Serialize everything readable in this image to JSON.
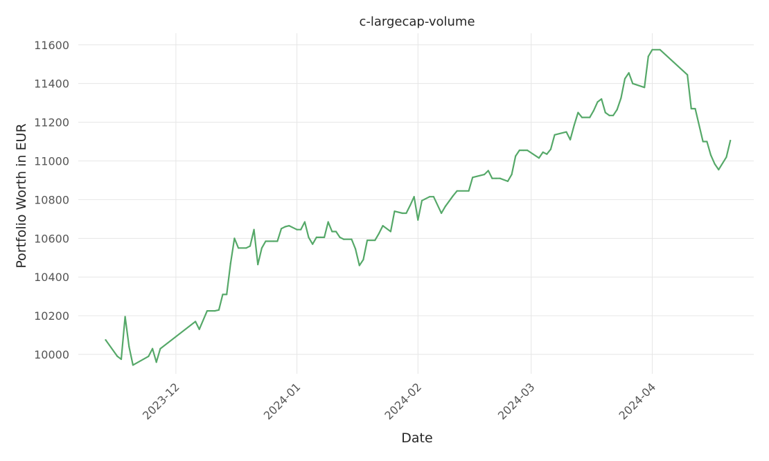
{
  "chart_data": {
    "type": "line",
    "title": "c-largecap-volume",
    "xlabel": "Date",
    "ylabel": "Portfolio Worth in EUR",
    "grid": true,
    "color": "#55a868",
    "xlim": [
      "2023-11-06",
      "2024-04-27"
    ],
    "ylim": [
      9900,
      11660
    ],
    "y_ticks": [
      10000,
      10200,
      10400,
      10600,
      10800,
      11000,
      11200,
      11400,
      11600
    ],
    "x_ticks": [
      {
        "date": "2023-12-01",
        "label": "2023-12"
      },
      {
        "date": "2024-01-01",
        "label": "2024-01"
      },
      {
        "date": "2024-02-01",
        "label": "2024-02"
      },
      {
        "date": "2024-03-01",
        "label": "2024-03"
      },
      {
        "date": "2024-04-01",
        "label": "2024-04"
      }
    ],
    "series": [
      {
        "x": [
          "2023-11-13",
          "2023-11-16",
          "2023-11-17",
          "2023-11-18",
          "2023-11-19",
          "2023-11-20",
          "2023-11-24",
          "2023-11-25",
          "2023-11-26",
          "2023-11-27",
          "2023-12-06",
          "2023-12-07",
          "2023-12-09",
          "2023-12-11",
          "2023-12-12",
          "2023-12-13",
          "2023-12-14",
          "2023-12-15",
          "2023-12-16",
          "2023-12-17",
          "2023-12-19",
          "2023-12-20",
          "2023-12-21",
          "2023-12-22",
          "2023-12-23",
          "2023-12-24",
          "2023-12-26",
          "2023-12-27",
          "2023-12-28",
          "2023-12-29",
          "2023-12-30",
          "2024-01-01",
          "2024-01-02",
          "2024-01-03",
          "2024-01-04",
          "2024-01-05",
          "2024-01-06",
          "2024-01-07",
          "2024-01-08",
          "2024-01-09",
          "2024-01-10",
          "2024-01-11",
          "2024-01-12",
          "2024-01-13",
          "2024-01-15",
          "2024-01-16",
          "2024-01-17",
          "2024-01-18",
          "2024-01-19",
          "2024-01-21",
          "2024-01-22",
          "2024-01-23",
          "2024-01-25",
          "2024-01-26",
          "2024-01-28",
          "2024-01-29",
          "2024-01-30",
          "2024-01-31",
          "2024-02-01",
          "2024-02-02",
          "2024-02-04",
          "2024-02-05",
          "2024-02-07",
          "2024-02-08",
          "2024-02-10",
          "2024-02-11",
          "2024-02-14",
          "2024-02-15",
          "2024-02-18",
          "2024-02-19",
          "2024-02-20",
          "2024-02-21",
          "2024-02-22",
          "2024-02-24",
          "2024-02-25",
          "2024-02-26",
          "2024-02-27",
          "2024-02-28",
          "2024-02-29",
          "2024-03-03",
          "2024-03-04",
          "2024-03-05",
          "2024-03-06",
          "2024-03-07",
          "2024-03-10",
          "2024-03-11",
          "2024-03-12",
          "2024-03-13",
          "2024-03-14",
          "2024-03-16",
          "2024-03-17",
          "2024-03-18",
          "2024-03-19",
          "2024-03-20",
          "2024-03-21",
          "2024-03-22",
          "2024-03-23",
          "2024-03-24",
          "2024-03-25",
          "2024-03-26",
          "2024-03-27",
          "2024-03-30",
          "2024-03-31",
          "2024-04-01",
          "2024-04-03",
          "2024-04-10",
          "2024-04-11",
          "2024-04-12",
          "2024-04-14",
          "2024-04-15",
          "2024-04-16",
          "2024-04-17",
          "2024-04-18",
          "2024-04-20",
          "2024-04-21"
        ],
        "y": [
          10075,
          9990,
          9975,
          10195,
          10040,
          9945,
          9990,
          10030,
          9960,
          10030,
          10170,
          10130,
          10225,
          10225,
          10230,
          10310,
          10310,
          10470,
          10600,
          10550,
          10550,
          10560,
          10645,
          10465,
          10550,
          10585,
          10585,
          10585,
          10650,
          10660,
          10665,
          10645,
          10645,
          10685,
          10605,
          10570,
          10605,
          10605,
          10605,
          10685,
          10635,
          10635,
          10605,
          10595,
          10595,
          10545,
          10460,
          10490,
          10590,
          10590,
          10625,
          10665,
          10635,
          10740,
          10730,
          10730,
          10770,
          10815,
          10695,
          10795,
          10815,
          10815,
          10730,
          10765,
          10820,
          10845,
          10845,
          10915,
          10930,
          10950,
          10910,
          10910,
          10910,
          10895,
          10930,
          11025,
          11055,
          11055,
          11055,
          11015,
          11045,
          11035,
          11060,
          11135,
          11150,
          11110,
          11185,
          11250,
          11225,
          11225,
          11260,
          11305,
          11320,
          11250,
          11235,
          11235,
          11265,
          11325,
          11425,
          11455,
          11400,
          11380,
          11540,
          11575,
          11575,
          11445,
          11270,
          11270,
          11100,
          11100,
          11030,
          10985,
          10955,
          11020,
          11105
        ]
      }
    ]
  }
}
